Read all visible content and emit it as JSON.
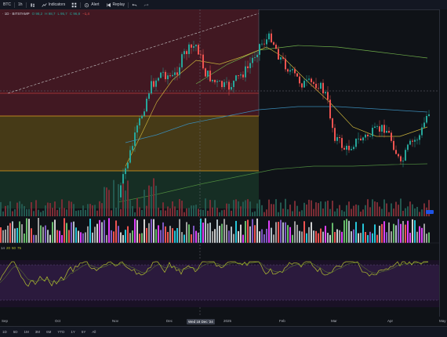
{
  "toolbar": {
    "symbol_short": "BTC",
    "interval": "1h",
    "indicators_label": "Indicators",
    "alert_label": "Alert",
    "replay_label": "Replay"
  },
  "legend": {
    "title": "· 1D · BITSTAMP",
    "o": "O 98,2",
    "h": "H 98,7",
    "l": "L 95,7",
    "c": "C 96,8",
    "chg": "−1,4"
  },
  "rsi": {
    "label": "14",
    "v1": "20",
    "v2": "50",
    "v3": "75"
  },
  "xaxis": {
    "labels": [
      "Sep",
      "Oct",
      "Nov",
      "Dec",
      "2025",
      "Feb",
      "Mar",
      "Apr",
      "May"
    ],
    "highlight": "Wed 18 Dec '24"
  },
  "bottom": {
    "ranges": [
      "1D",
      "5D",
      "1M",
      "3M",
      "6M",
      "YTD",
      "1Y",
      "5Y",
      "All"
    ]
  },
  "colors": {
    "up": "#26a69a",
    "down": "#ef5350",
    "zone_red": "#5c1f2a",
    "zone_orange": "#5a4a18",
    "zone_green": "#1d3a2a",
    "rsi_line": "#b4c12f"
  }
}
